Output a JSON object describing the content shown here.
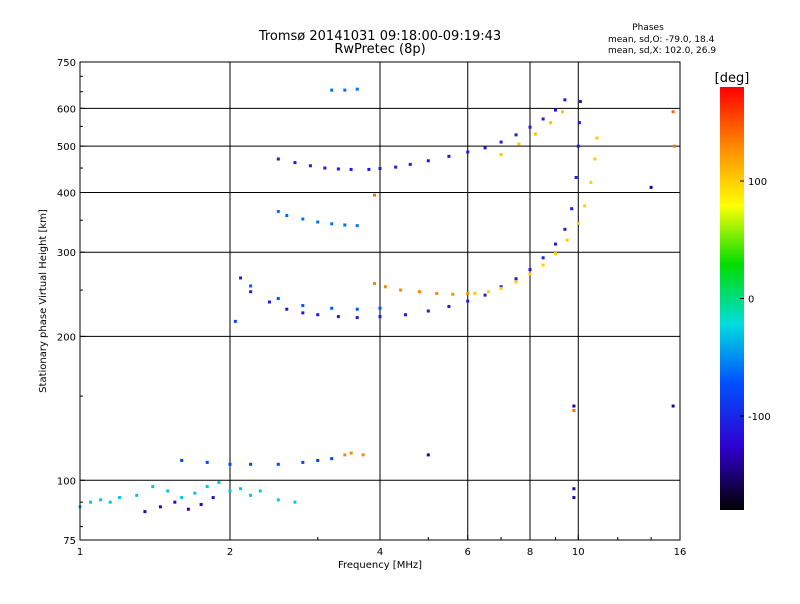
{
  "chart_data": {
    "type": "scatter",
    "title": "Tromsø 20141031 09:18:00-09:19:43",
    "subtitle": "RwPretec (8p)",
    "xlabel": "Frequency [MHz]",
    "ylabel": "Stationary phase Virtual Height [km]",
    "x_scale": "log",
    "y_scale": "log",
    "xlim": [
      1,
      16
    ],
    "ylim": [
      75,
      750
    ],
    "x_ticks": [
      1,
      2,
      4,
      6,
      8,
      10,
      16
    ],
    "x_tick_labels": [
      "1",
      "2",
      "4",
      "6",
      "8",
      "10",
      "16"
    ],
    "y_ticks": [
      75,
      100,
      200,
      300,
      400,
      500,
      600,
      750
    ],
    "y_tick_labels": [
      "75",
      "100",
      "200",
      "300",
      "400",
      "500",
      "600",
      "750"
    ],
    "grid": true,
    "stats": {
      "heading": "Phases",
      "line_O": "mean, sd,O: -79.0, 18.4",
      "line_X": "mean, sd,X: 102.0, 26.9"
    },
    "colorbar": {
      "label": "[deg]",
      "range": [
        -180,
        180
      ],
      "ticks": [
        100,
        0,
        -100
      ],
      "tick_labels": [
        "100",
        "0",
        "-100"
      ],
      "colors": [
        "#ff0000",
        "#ff8800",
        "#ffff00",
        "#00dd00",
        "#00dddd",
        "#0050ff",
        "#3000d0",
        "#000000"
      ]
    },
    "series": [
      {
        "points": [
          [
            2.5,
            470
          ],
          [
            2.7,
            462
          ],
          [
            2.9,
            455
          ],
          [
            3.1,
            450
          ],
          [
            3.3,
            448
          ],
          [
            3.5,
            447
          ],
          [
            3.8,
            447
          ],
          [
            4.0,
            449
          ],
          [
            4.3,
            452
          ],
          [
            4.6,
            458
          ],
          [
            5.0,
            466
          ],
          [
            5.5,
            476
          ],
          [
            6.0,
            486
          ],
          [
            6.5,
            496
          ],
          [
            7.0,
            510
          ],
          [
            7.5,
            528
          ],
          [
            8.0,
            548
          ],
          [
            8.5,
            570
          ],
          [
            9.0,
            595
          ],
          [
            9.4,
            625
          ]
        ],
        "phase": -110
      },
      {
        "points": [
          [
            3.2,
            655
          ],
          [
            3.4,
            655
          ],
          [
            3.6,
            658
          ]
        ],
        "phase": -60
      },
      {
        "points": [
          [
            2.5,
            365
          ],
          [
            2.6,
            358
          ],
          [
            2.8,
            352
          ],
          [
            3.0,
            347
          ],
          [
            3.2,
            344
          ],
          [
            3.4,
            342
          ],
          [
            3.6,
            341
          ]
        ],
        "phase": -60
      },
      {
        "points": [
          [
            2.1,
            265
          ],
          [
            2.2,
            248
          ],
          [
            2.4,
            236
          ],
          [
            2.6,
            228
          ],
          [
            2.8,
            224
          ],
          [
            3.0,
            222
          ],
          [
            3.3,
            220
          ],
          [
            3.6,
            219
          ],
          [
            4.0,
            220
          ],
          [
            4.5,
            222
          ],
          [
            5.0,
            226
          ],
          [
            5.5,
            231
          ],
          [
            6.0,
            237
          ],
          [
            6.5,
            244
          ],
          [
            7.0,
            254
          ],
          [
            7.5,
            264
          ],
          [
            8.0,
            276
          ],
          [
            8.5,
            292
          ],
          [
            9.0,
            312
          ],
          [
            9.4,
            335
          ],
          [
            9.7,
            370
          ],
          [
            9.9,
            430
          ],
          [
            10.0,
            500
          ],
          [
            10.05,
            560
          ],
          [
            10.1,
            620
          ]
        ],
        "phase": -110
      },
      {
        "points": [
          [
            2.2,
            255
          ],
          [
            2.5,
            240
          ],
          [
            2.8,
            232
          ],
          [
            3.2,
            229
          ],
          [
            3.6,
            228
          ],
          [
            4.0,
            229
          ]
        ],
        "phase": -70
      },
      {
        "points": [
          [
            3.9,
            258
          ],
          [
            4.1,
            254
          ],
          [
            4.4,
            250
          ],
          [
            4.8,
            248
          ],
          [
            5.2,
            246
          ],
          [
            5.6,
            245
          ],
          [
            6.0,
            246
          ]
        ],
        "phase": 130
      },
      {
        "points": [
          [
            6.2,
            246
          ],
          [
            6.6,
            248
          ],
          [
            7.0,
            252
          ],
          [
            7.5,
            260
          ],
          [
            8.0,
            270
          ],
          [
            8.5,
            282
          ],
          [
            9.0,
            298
          ],
          [
            9.5,
            318
          ],
          [
            10.0,
            345
          ],
          [
            10.3,
            375
          ],
          [
            10.6,
            420
          ],
          [
            10.8,
            470
          ],
          [
            10.9,
            520
          ]
        ],
        "phase": 100
      },
      {
        "points": [
          [
            7.0,
            480
          ],
          [
            7.6,
            505
          ],
          [
            8.2,
            530
          ],
          [
            8.8,
            560
          ],
          [
            9.3,
            590
          ]
        ],
        "phase": 105
      },
      {
        "points": [
          [
            2.05,
            215
          ]
        ],
        "phase": -80
      },
      {
        "points": [
          [
            1.6,
            110
          ],
          [
            1.8,
            109
          ],
          [
            2.0,
            108
          ],
          [
            2.2,
            108
          ],
          [
            2.5,
            108
          ],
          [
            2.8,
            109
          ],
          [
            3.0,
            110
          ],
          [
            3.2,
            111
          ]
        ],
        "phase": -80
      },
      {
        "points": [
          [
            3.4,
            113
          ],
          [
            3.5,
            114
          ],
          [
            3.7,
            113
          ]
        ],
        "phase": 130
      },
      {
        "points": [
          [
            1.0,
            88
          ],
          [
            1.05,
            90
          ],
          [
            1.1,
            91
          ],
          [
            1.15,
            90
          ],
          [
            1.2,
            92
          ],
          [
            1.3,
            93
          ],
          [
            1.4,
            97
          ],
          [
            1.5,
            95
          ],
          [
            1.6,
            92
          ],
          [
            1.7,
            94
          ],
          [
            1.8,
            97
          ],
          [
            1.9,
            99
          ],
          [
            2.0,
            95
          ],
          [
            2.1,
            96
          ],
          [
            2.2,
            93
          ],
          [
            2.3,
            95
          ],
          [
            2.5,
            91
          ],
          [
            2.7,
            90
          ]
        ],
        "phase": -30
      },
      {
        "points": [
          [
            1.35,
            86
          ],
          [
            1.45,
            88
          ],
          [
            1.55,
            90
          ],
          [
            1.65,
            87
          ],
          [
            1.75,
            89
          ],
          [
            1.85,
            92
          ]
        ],
        "phase": -130
      },
      {
        "points": [
          [
            5.0,
            113
          ],
          [
            9.8,
            143
          ],
          [
            9.8,
            96
          ],
          [
            9.8,
            92
          ],
          [
            14.0,
            410
          ],
          [
            15.5,
            143
          ]
        ],
        "phase": -140
      },
      {
        "points": [
          [
            3.9,
            395
          ],
          [
            9.8,
            140
          ],
          [
            15.5,
            590
          ],
          [
            15.6,
            500
          ]
        ],
        "phase": 140
      }
    ]
  }
}
